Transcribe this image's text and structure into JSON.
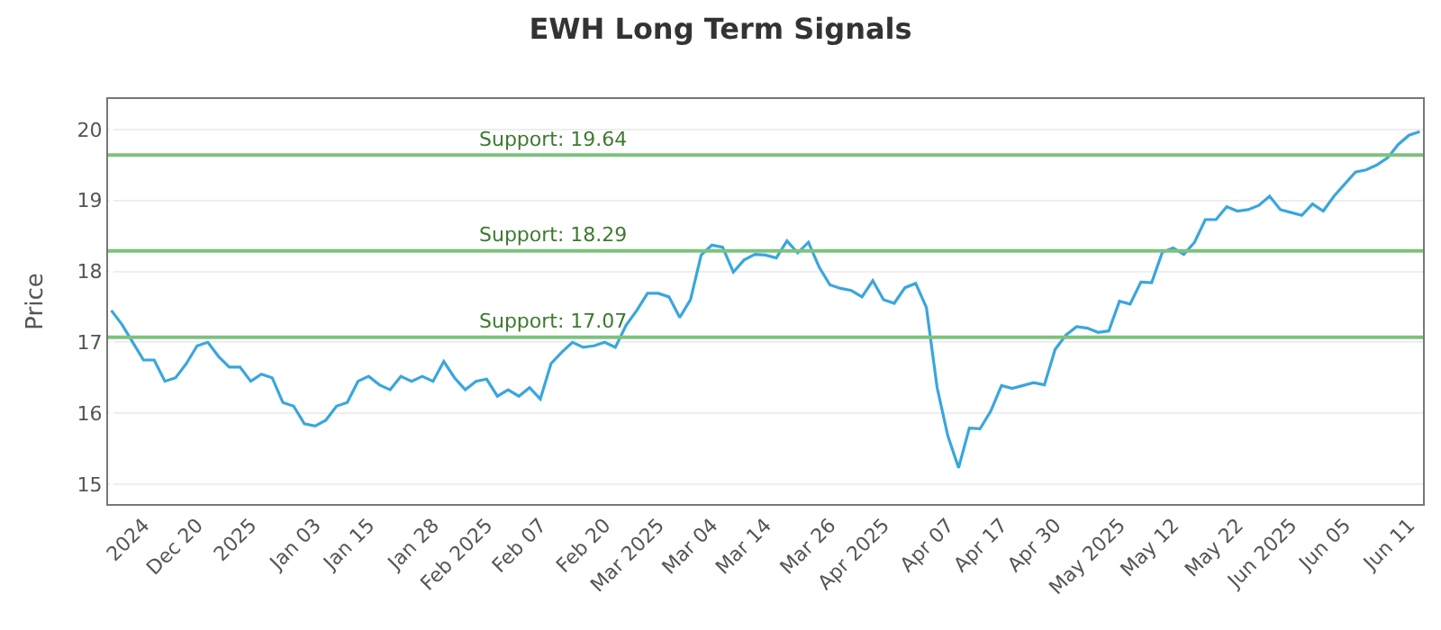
{
  "chart_data": {
    "type": "line",
    "title": "EWH Long Term Signals",
    "ylabel": "Price",
    "categories": [
      null,
      null,
      null,
      "2024",
      null,
      null,
      null,
      null,
      "Dec 20",
      null,
      null,
      null,
      null,
      "2025",
      null,
      null,
      null,
      null,
      null,
      "Jan 03",
      null,
      null,
      null,
      null,
      "Jan 15",
      null,
      null,
      null,
      null,
      null,
      "Jan 28",
      null,
      null,
      null,
      null,
      "Feb 2025",
      null,
      null,
      null,
      null,
      "Feb 07",
      null,
      null,
      null,
      null,
      null,
      "Feb 20",
      null,
      null,
      null,
      null,
      "Mar 2025",
      null,
      null,
      null,
      null,
      "Mar 04",
      null,
      null,
      null,
      null,
      "Mar 14",
      null,
      null,
      null,
      null,
      null,
      "Mar 26",
      null,
      null,
      null,
      null,
      "Apr 2025",
      null,
      null,
      null,
      null,
      null,
      "Apr 07",
      null,
      null,
      null,
      null,
      "Apr 17",
      null,
      null,
      null,
      null,
      "Apr 30",
      null,
      null,
      null,
      null,
      null,
      "May 2025",
      null,
      null,
      null,
      null,
      "May 12",
      null,
      null,
      null,
      null,
      null,
      "May 22",
      null,
      null,
      null,
      null,
      "Jun 2025",
      null,
      null,
      null,
      null,
      "Jun 05",
      null,
      null,
      null,
      null,
      null,
      "Jun 11",
      null
    ],
    "series": [
      {
        "color": "#3aa6dd",
        "values": [
          17.45,
          17.25,
          17.0,
          16.75,
          16.75,
          16.45,
          16.5,
          16.7,
          16.95,
          17.0,
          16.8,
          16.65,
          16.65,
          16.45,
          16.55,
          16.5,
          16.15,
          16.1,
          15.85,
          15.82,
          15.9,
          16.1,
          16.15,
          16.45,
          16.52,
          16.4,
          16.33,
          16.52,
          16.45,
          16.52,
          16.45,
          16.73,
          16.5,
          16.33,
          16.45,
          16.48,
          16.24,
          16.33,
          16.24,
          16.36,
          16.2,
          16.7,
          16.86,
          17.0,
          16.93,
          16.95,
          17.0,
          16.93,
          17.24,
          17.45,
          17.69,
          17.69,
          17.64,
          17.35,
          17.6,
          18.23,
          18.37,
          18.34,
          17.99,
          18.16,
          18.24,
          18.23,
          18.19,
          18.43,
          18.26,
          18.41,
          18.06,
          17.81,
          17.76,
          17.73,
          17.64,
          17.87,
          17.6,
          17.55,
          17.77,
          17.83,
          17.49,
          16.36,
          15.68,
          15.23,
          15.79,
          15.78,
          16.03,
          16.39,
          16.35,
          16.39,
          16.43,
          16.4,
          16.9,
          17.1,
          17.22,
          17.2,
          17.14,
          17.16,
          17.58,
          17.54,
          17.85,
          17.84,
          18.27,
          18.33,
          18.24,
          18.41,
          18.73,
          18.73,
          18.91,
          18.85,
          18.87,
          18.93,
          19.06,
          18.87,
          18.83,
          18.79,
          18.95,
          18.85,
          19.06,
          19.23,
          19.4,
          19.43,
          19.5,
          19.6,
          19.79,
          19.92,
          19.97
        ]
      }
    ],
    "ylim": [
      14.72,
      20.43
    ],
    "yticks": [
      15,
      16,
      17,
      18,
      19,
      20
    ],
    "grid": "y",
    "marker": "none",
    "line_style": "solid",
    "ref_lines": [
      {
        "axis": "y",
        "value": 19.64,
        "label": "Support: 19.64",
        "color": "#7dc27d"
      },
      {
        "axis": "y",
        "value": 18.29,
        "label": "Support: 18.29",
        "color": "#7dc27d"
      },
      {
        "axis": "y",
        "value": 17.07,
        "label": "Support: 17.07",
        "color": "#7dc27d"
      }
    ]
  }
}
